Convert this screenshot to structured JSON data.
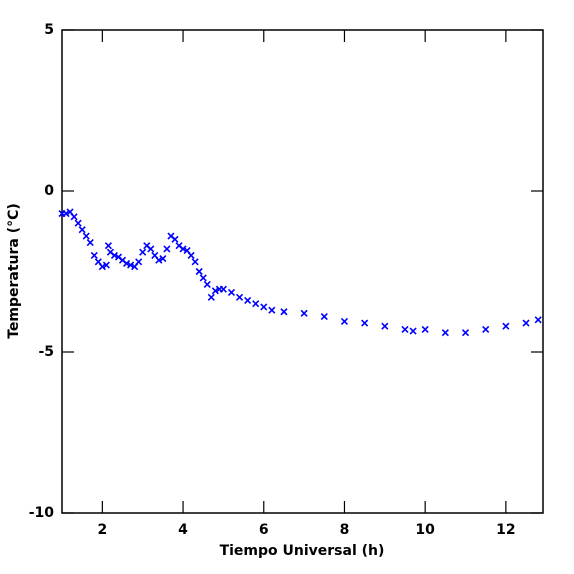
{
  "chart_data": {
    "type": "scatter",
    "x_label": "Tiempo Universal (h)",
    "y_label": "Temperatura (°C)",
    "xlim": [
      1,
      12.92
    ],
    "ylim": [
      -10,
      5
    ],
    "xticks": [
      2,
      4,
      6,
      8,
      10,
      12
    ],
    "yticks": [
      -10,
      -5,
      0,
      5
    ],
    "color": "#0000ff",
    "x": [
      1.0,
      1.1,
      1.2,
      1.3,
      1.4,
      1.5,
      1.6,
      1.7,
      1.8,
      1.9,
      2.0,
      2.1,
      2.15,
      2.2,
      2.3,
      2.4,
      2.5,
      2.6,
      2.7,
      2.8,
      2.9,
      3.0,
      3.1,
      3.2,
      3.3,
      3.4,
      3.5,
      3.6,
      3.7,
      3.8,
      3.9,
      4.0,
      4.1,
      4.2,
      4.3,
      4.4,
      4.5,
      4.6,
      4.7,
      4.8,
      4.9,
      5.0,
      5.2,
      5.4,
      5.6,
      5.8,
      6.0,
      6.2,
      6.5,
      7.0,
      7.5,
      8.0,
      8.5,
      9.0,
      9.5,
      9.7,
      10.0,
      10.5,
      11.0,
      11.5,
      12.0,
      12.5,
      12.8
    ],
    "y": [
      -0.7,
      -0.7,
      -0.65,
      -0.8,
      -1.0,
      -1.2,
      -1.4,
      -1.6,
      -2.0,
      -2.2,
      -2.35,
      -2.3,
      -1.7,
      -1.9,
      -2.0,
      -2.05,
      -2.15,
      -2.25,
      -2.3,
      -2.35,
      -2.2,
      -1.9,
      -1.7,
      -1.8,
      -2.0,
      -2.15,
      -2.1,
      -1.8,
      -1.4,
      -1.5,
      -1.7,
      -1.8,
      -1.85,
      -2.0,
      -2.2,
      -2.5,
      -2.7,
      -2.9,
      -3.3,
      -3.1,
      -3.05,
      -3.05,
      -3.15,
      -3.3,
      -3.4,
      -3.5,
      -3.6,
      -3.7,
      -3.75,
      -3.8,
      -3.9,
      -4.05,
      -4.1,
      -4.2,
      -4.3,
      -4.35,
      -4.3,
      -4.4,
      -4.4,
      -4.3,
      -4.2,
      -4.1,
      -4.0
    ]
  }
}
